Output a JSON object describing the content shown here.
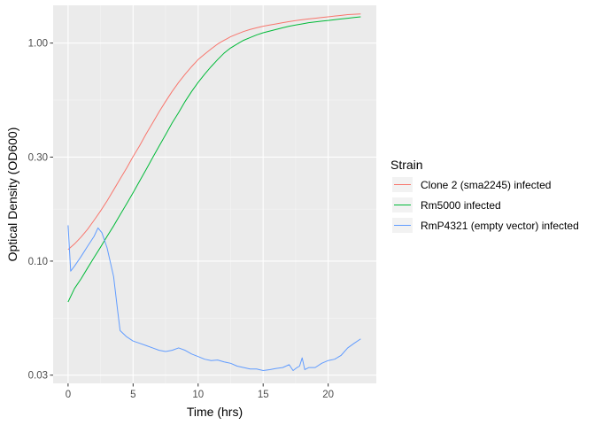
{
  "chart_data": {
    "type": "line",
    "title": "",
    "xlabel": "Time (hrs)",
    "ylabel": "Optical Density (OD600)",
    "x_scale": "linear",
    "y_scale": "log",
    "xlim": [
      -1.15,
      23.7
    ],
    "ylim": [
      0.0275,
      1.49
    ],
    "x_ticks": [
      0,
      5,
      10,
      15,
      20
    ],
    "x_tick_labels": [
      "0",
      "5",
      "10",
      "15",
      "20"
    ],
    "y_ticks": [
      0.03,
      0.1,
      0.3,
      1.0
    ],
    "y_tick_labels": [
      "0.03",
      "0.10",
      "0.30",
      "1.00"
    ],
    "grid": true,
    "legend": {
      "title": "Strain",
      "position": "right"
    },
    "series": [
      {
        "name": "Clone 2 (sma2245) infected",
        "color": "#F8766D",
        "x": [
          0,
          0.5,
          1,
          1.5,
          2,
          2.5,
          3,
          3.5,
          4,
          4.5,
          5,
          5.5,
          6,
          6.5,
          7,
          7.5,
          8,
          8.5,
          9,
          9.5,
          10,
          10.5,
          11,
          11.5,
          12,
          12.5,
          13,
          13.5,
          14,
          14.5,
          15,
          15.5,
          16,
          16.5,
          17,
          17.5,
          18,
          18.5,
          19,
          19.5,
          20,
          20.5,
          21,
          21.5,
          22,
          22.5
        ],
        "y": [
          0.113,
          0.12,
          0.129,
          0.14,
          0.154,
          0.17,
          0.189,
          0.212,
          0.238,
          0.267,
          0.302,
          0.338,
          0.383,
          0.43,
          0.484,
          0.54,
          0.6,
          0.66,
          0.72,
          0.78,
          0.84,
          0.89,
          0.94,
          0.99,
          1.03,
          1.07,
          1.1,
          1.13,
          1.155,
          1.175,
          1.195,
          1.21,
          1.225,
          1.24,
          1.255,
          1.268,
          1.28,
          1.29,
          1.3,
          1.31,
          1.32,
          1.33,
          1.34,
          1.35,
          1.355,
          1.36
        ]
      },
      {
        "name": "Rm5000 infected",
        "color": "#00BA38",
        "x": [
          0,
          0.5,
          1,
          1.5,
          2,
          2.5,
          3,
          3.5,
          4,
          4.5,
          5,
          5.5,
          6,
          6.5,
          7,
          7.5,
          8,
          8.5,
          9,
          9.5,
          10,
          10.5,
          11,
          11.5,
          12,
          12.5,
          13,
          13.5,
          14,
          14.5,
          15,
          15.5,
          16,
          16.5,
          17,
          17.5,
          18,
          18.5,
          19,
          19.5,
          20,
          20.5,
          21,
          21.5,
          22,
          22.5
        ],
        "y": [
          0.065,
          0.075,
          0.083,
          0.093,
          0.104,
          0.116,
          0.13,
          0.145,
          0.163,
          0.183,
          0.206,
          0.233,
          0.263,
          0.298,
          0.337,
          0.38,
          0.43,
          0.48,
          0.54,
          0.6,
          0.66,
          0.72,
          0.78,
          0.84,
          0.9,
          0.95,
          0.99,
          1.03,
          1.06,
          1.09,
          1.115,
          1.135,
          1.155,
          1.175,
          1.195,
          1.21,
          1.225,
          1.24,
          1.25,
          1.26,
          1.27,
          1.28,
          1.29,
          1.3,
          1.31,
          1.32
        ]
      },
      {
        "name": "RmP4321 (empty vector) infected",
        "color": "#619CFF",
        "x": [
          0,
          0.2,
          0.5,
          1,
          1.5,
          2,
          2.3,
          2.6,
          3,
          3.5,
          3.8,
          4,
          4.5,
          5,
          5.5,
          6,
          6.5,
          7,
          7.5,
          8,
          8.5,
          9,
          9.5,
          10,
          10.5,
          11,
          11.5,
          12,
          12.5,
          13,
          13.5,
          14,
          14.5,
          15,
          15.5,
          16,
          16.5,
          17,
          17.3,
          17.6,
          17.8,
          18,
          18.2,
          18.5,
          19,
          19.5,
          20,
          20.5,
          21,
          21.5,
          22,
          22.5
        ],
        "y": [
          0.146,
          0.09,
          0.095,
          0.105,
          0.117,
          0.13,
          0.142,
          0.135,
          0.115,
          0.085,
          0.06,
          0.048,
          0.045,
          0.043,
          0.042,
          0.041,
          0.04,
          0.039,
          0.0385,
          0.039,
          0.04,
          0.039,
          0.0375,
          0.0365,
          0.0355,
          0.035,
          0.0352,
          0.0345,
          0.034,
          0.033,
          0.0325,
          0.032,
          0.032,
          0.0315,
          0.0318,
          0.0322,
          0.0325,
          0.0335,
          0.0315,
          0.0325,
          0.033,
          0.036,
          0.0318,
          0.0325,
          0.0325,
          0.034,
          0.035,
          0.0355,
          0.037,
          0.04,
          0.042,
          0.044
        ]
      }
    ]
  }
}
